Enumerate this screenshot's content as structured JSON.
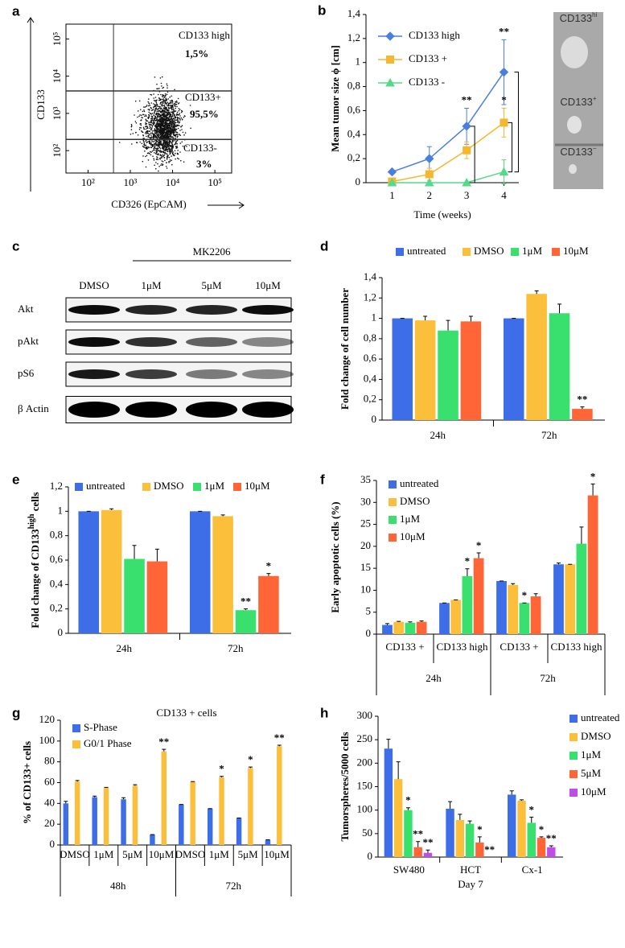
{
  "chart_data": [
    {
      "panel": "a",
      "type": "scatter",
      "x_label": "CD326 (EpCAM)",
      "y_label": "CD133",
      "log_x": true,
      "log_y": true,
      "xlim": [
        30,
        250000
      ],
      "ylim": [
        25,
        250000
      ],
      "xticks": [
        {
          "value": 100,
          "label": "10²"
        },
        {
          "value": 1000,
          "label": "10³"
        },
        {
          "value": 10000,
          "label": "10⁴"
        },
        {
          "value": 100000,
          "label": "10⁵"
        }
      ],
      "yticks": [
        {
          "value": 100,
          "label": "10²"
        },
        {
          "value": 1000,
          "label": "10³"
        },
        {
          "value": 10000,
          "label": "10⁴"
        },
        {
          "value": 100000,
          "label": "10⁵"
        }
      ],
      "gates": {
        "x": [
          400
        ],
        "y": [
          200,
          4000
        ]
      },
      "quadrants": [
        {
          "name": "CD133 high",
          "value": 1.5,
          "value_label": "1,5%"
        },
        {
          "name": "CD133+",
          "value": 95.5,
          "value_label": "95,5%"
        },
        {
          "name": "CD133-",
          "value": 3,
          "value_label": "3%"
        }
      ]
    },
    {
      "panel": "b",
      "type": "line",
      "x_label": "Time (weeks)",
      "y_label": "Mean tumor size ϕ [cm]",
      "x": [
        1,
        2,
        3,
        4
      ],
      "xlim": [
        0.3,
        4.4
      ],
      "xticks": [
        1,
        2,
        3,
        4
      ],
      "ylim": [
        0,
        1.4
      ],
      "yticks": [
        0,
        {
          "value": 0.2,
          "label": "0,2"
        },
        {
          "value": 0.4,
          "label": "0,4"
        },
        {
          "value": 0.6,
          "label": "0,6"
        },
        {
          "value": 0.8,
          "label": "0,8"
        },
        1,
        {
          "value": 1.2,
          "label": "1,2"
        },
        {
          "value": 1.4,
          "label": "1,4"
        }
      ],
      "series": [
        {
          "name": "CD133 high",
          "color": "#4a7fe0",
          "marker": "diamond",
          "values": [
            0.09,
            0.2,
            0.47,
            0.92
          ],
          "errors": [
            0.01,
            0.1,
            0.15,
            0.27
          ]
        },
        {
          "name": "CD133 +",
          "color": "#f5b72f",
          "marker": "square",
          "values": [
            0.01,
            0.07,
            0.27,
            0.5
          ],
          "errors": [
            0.01,
            0.05,
            0.07,
            0.12
          ]
        },
        {
          "name": "CD133 -",
          "color": "#55d98a",
          "marker": "triangle",
          "values": [
            0,
            0,
            0,
            0.09
          ],
          "errors": [
            0,
            0,
            0,
            0.1
          ]
        }
      ],
      "annotations": [
        {
          "text": "**",
          "series": 0,
          "index": 2
        },
        {
          "text": "**",
          "series": 0,
          "index": 3
        },
        {
          "text": "*",
          "series": 1,
          "index": 3
        }
      ],
      "image_labels": [
        {
          "text": "CD133",
          "sup": "hi"
        },
        {
          "text": "CD133",
          "sup": "+"
        },
        {
          "text": "CD133",
          "sup": "−"
        }
      ]
    },
    {
      "panel": "d",
      "type": "bar",
      "y_label": "Fold change of cell number",
      "categories": [
        "24h",
        "72h"
      ],
      "ylim": [
        0,
        1.4
      ],
      "yticks": [
        0,
        {
          "value": 0.2,
          "label": "0,2"
        },
        {
          "value": 0.4,
          "label": "0,4"
        },
        {
          "value": 0.6,
          "label": "0,6"
        },
        {
          "value": 0.8,
          "label": "0,8"
        },
        1,
        {
          "value": 1.2,
          "label": "1,2"
        },
        {
          "value": 1.4,
          "label": "1,4"
        }
      ],
      "series": [
        {
          "name": "untreated",
          "color": "#3d6ee8",
          "values": [
            1,
            1
          ],
          "errors": [
            0,
            0
          ]
        },
        {
          "name": "DMSO",
          "color": "#fbbf3c",
          "values": [
            0.98,
            1.24
          ],
          "errors": [
            0.04,
            0.03
          ]
        },
        {
          "name": "1μM",
          "color": "#3ae06e",
          "values": [
            0.88,
            1.05
          ],
          "errors": [
            0.1,
            0.09
          ]
        },
        {
          "name": "10μM",
          "color": "#ff6536",
          "values": [
            0.97,
            0.11
          ],
          "errors": [
            0.05,
            0.02
          ]
        }
      ],
      "annotations": [
        {
          "text": "**",
          "series": 3,
          "index": 1
        }
      ]
    },
    {
      "panel": "e",
      "type": "bar",
      "y_label": "Fold change of CD133",
      "y_label_sup": "high",
      "y_label_end": " cells",
      "categories": [
        "24h",
        "72h"
      ],
      "ylim": [
        0,
        1.2
      ],
      "yticks": [
        0,
        {
          "value": 0.2,
          "label": "0,2"
        },
        {
          "value": 0.4,
          "label": "0,4"
        },
        {
          "value": 0.6,
          "label": "0,6"
        },
        {
          "value": 0.8,
          "label": "0,8"
        },
        1,
        {
          "value": 1.2,
          "label": "1,2"
        }
      ],
      "series": [
        {
          "name": "untreated",
          "color": "#3d6ee8",
          "values": [
            1,
            1
          ],
          "errors": [
            0,
            0
          ]
        },
        {
          "name": "DMSO",
          "color": "#fbbf3c",
          "values": [
            1.01,
            0.96
          ],
          "errors": [
            0.01,
            0.01
          ]
        },
        {
          "name": "1μM",
          "color": "#3ae06e",
          "values": [
            0.61,
            0.19
          ],
          "errors": [
            0.11,
            0.01
          ]
        },
        {
          "name": "10μM",
          "color": "#ff6536",
          "values": [
            0.59,
            0.47
          ],
          "errors": [
            0.1,
            0.02
          ]
        }
      ],
      "annotations": [
        {
          "text": "**",
          "series": 2,
          "index": 1
        },
        {
          "text": "*",
          "series": 3,
          "index": 1
        }
      ]
    },
    {
      "panel": "f",
      "type": "bar",
      "y_label": "Early apoptotic cells (%)",
      "categories": [
        "CD133 +",
        "CD133 high",
        "CD133 +",
        "CD133 high"
      ],
      "groups": [
        "24h",
        "72h"
      ],
      "ylim": [
        0,
        35
      ],
      "yticks": [
        0,
        5,
        10,
        15,
        20,
        25,
        30,
        35
      ],
      "series": [
        {
          "name": "untreated",
          "color": "#3d6ee8",
          "values": [
            2.1,
            7.1,
            12.1,
            15.9
          ],
          "errors": [
            0.3,
            0,
            0,
            0.3
          ]
        },
        {
          "name": "DMSO",
          "color": "#fbbf3c",
          "values": [
            2.8,
            7.8,
            11.2,
            15.9
          ],
          "errors": [
            0.1,
            0,
            0.3,
            0
          ]
        },
        {
          "name": "1μM",
          "color": "#3ae06e",
          "values": [
            2.6,
            13.2,
            7.1,
            20.6
          ],
          "errors": [
            0.2,
            1.7,
            0,
            3.8
          ]
        },
        {
          "name": "10μM",
          "color": "#ff6536",
          "values": [
            2.8,
            17.3,
            8.6,
            31.6
          ],
          "errors": [
            0.2,
            1.2,
            0.6,
            2.6
          ]
        }
      ],
      "annotations": [
        {
          "text": "*",
          "series": 2,
          "index": 1
        },
        {
          "text": "*",
          "series": 3,
          "index": 1
        },
        {
          "text": "*",
          "series": 2,
          "index": 2
        },
        {
          "text": "*",
          "series": 3,
          "index": 3
        }
      ]
    },
    {
      "panel": "g",
      "type": "bar",
      "title": "CD133 + cells",
      "y_label": "% of CD133+ cells",
      "categories": [
        "DMSO",
        "1μM",
        "5μM",
        "10μM",
        "DMSO",
        "1μM",
        "5μM",
        "10μM"
      ],
      "groups": [
        "48h",
        "72h"
      ],
      "ylim": [
        0,
        120
      ],
      "yticks": [
        0,
        20,
        40,
        60,
        80,
        100,
        120
      ],
      "series": [
        {
          "name": "S-Phase",
          "color": "#3d6ee8",
          "values": [
            40,
            46,
            44,
            10,
            39,
            35,
            26,
            5
          ],
          "errors": [
            2,
            1,
            1.5,
            0,
            0,
            0,
            0,
            0
          ]
        },
        {
          "name": "G0/1 Phase",
          "color": "#fbbf3c",
          "values": [
            61,
            55,
            57,
            90,
            61,
            65,
            74,
            95
          ],
          "errors": [
            1,
            0.5,
            1,
            2,
            0,
            1,
            1,
            1
          ]
        }
      ],
      "annotations": [
        {
          "text": "**",
          "series": 1,
          "index": 3
        },
        {
          "text": "*",
          "series": 1,
          "index": 5
        },
        {
          "text": "*",
          "series": 1,
          "index": 6
        },
        {
          "text": "**",
          "series": 1,
          "index": 7
        }
      ]
    },
    {
      "panel": "h",
      "type": "bar",
      "y_label": "Tumorspheres/5000 cells",
      "x_label": "Day 7",
      "categories": [
        "SW480",
        "HCT",
        "Cx-1"
      ],
      "ylim": [
        0,
        300
      ],
      "yticks": [
        0,
        50,
        100,
        150,
        200,
        250,
        300
      ],
      "series": [
        {
          "name": "untreated",
          "color": "#3d6ee8",
          "values": [
            231,
            103,
            133
          ],
          "errors": [
            20,
            15,
            8
          ]
        },
        {
          "name": "DMSO",
          "color": "#fbbf3c",
          "values": [
            166,
            79,
            120
          ],
          "errors": [
            37,
            12,
            2
          ]
        },
        {
          "name": "1μM",
          "color": "#3ae06e",
          "values": [
            100,
            71,
            73
          ],
          "errors": [
            5,
            6,
            12
          ]
        },
        {
          "name": "5μM",
          "color": "#ff6536",
          "values": [
            21,
            31,
            41
          ],
          "errors": [
            12,
            12,
            2
          ]
        },
        {
          "name": "10μM",
          "color": "#c04de8",
          "values": [
            9,
            0,
            21
          ],
          "errors": [
            6,
            0,
            3
          ]
        }
      ],
      "annotations": [
        {
          "text": "*",
          "series": 2,
          "index": 0
        },
        {
          "text": "**",
          "series": 3,
          "index": 0
        },
        {
          "text": "**",
          "series": 4,
          "index": 0
        },
        {
          "text": "*",
          "series": 3,
          "index": 1
        },
        {
          "text": "**",
          "series": 4,
          "index": 1
        },
        {
          "text": "*",
          "series": 2,
          "index": 2
        },
        {
          "text": "*",
          "series": 3,
          "index": 2
        },
        {
          "text": "**",
          "series": 4,
          "index": 2
        }
      ]
    }
  ],
  "blot": {
    "panel": "c",
    "group": "MK2206",
    "columns": [
      "DMSO",
      "1μM",
      "5μM",
      "10μM"
    ],
    "rows": [
      "Akt",
      "pAkt",
      "pS6",
      "β Actin"
    ],
    "intensity": [
      [
        0.95,
        0.85,
        0.85,
        0.95
      ],
      [
        0.95,
        0.8,
        0.6,
        0.45
      ],
      [
        0.9,
        0.75,
        0.5,
        0.45
      ],
      [
        1,
        1,
        1,
        1
      ]
    ]
  }
}
